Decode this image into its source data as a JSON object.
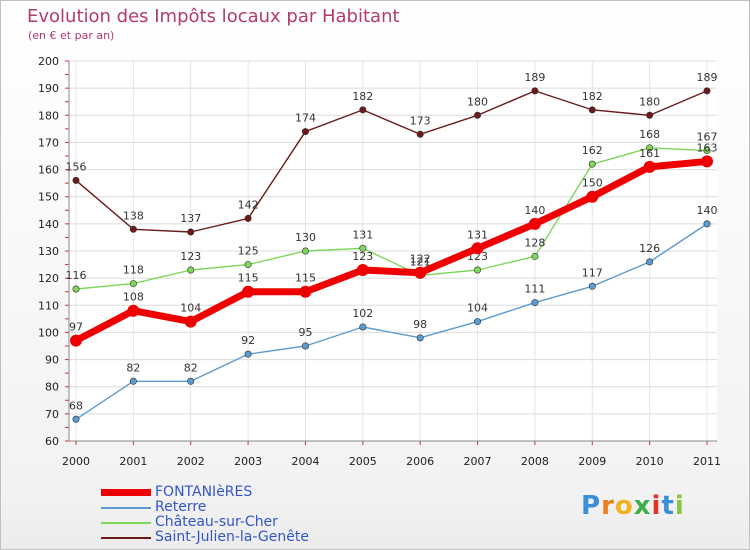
{
  "chart_data": {
    "type": "line",
    "title": "Evolution des Impôts locaux par Habitant",
    "subtitle": "(en € et par an)",
    "xlabel": "",
    "ylabel": "",
    "ylim": [
      60,
      200
    ],
    "yticks": [
      60,
      70,
      80,
      90,
      100,
      110,
      120,
      130,
      140,
      150,
      160,
      170,
      180,
      190,
      200
    ],
    "x": [
      "2000",
      "2001",
      "2002",
      "2003",
      "2004",
      "2005",
      "2006",
      "2007",
      "2008",
      "2009",
      "2010",
      "2011"
    ],
    "grid": true,
    "legend_position": "bottom-left",
    "series": [
      {
        "name": "Saint-Julien-la-Genête",
        "color": "#6b1a1a",
        "values": [
          156,
          138,
          137,
          142,
          174,
          182,
          173,
          180,
          189,
          182,
          180,
          189
        ]
      },
      {
        "name": "Château-sur-Cher",
        "color": "#7fd65a",
        "values": [
          116,
          118,
          123,
          125,
          130,
          131,
          121,
          123,
          128,
          162,
          168,
          167
        ]
      },
      {
        "name": "Reterre",
        "color": "#5b9bd0",
        "values": [
          68,
          82,
          82,
          92,
          95,
          102,
          98,
          104,
          111,
          117,
          126,
          140
        ]
      },
      {
        "name": "FONTANIèRES",
        "color": "#ee0000",
        "values": [
          97,
          108,
          104,
          115,
          115,
          123,
          122,
          131,
          140,
          150,
          161,
          163
        ]
      }
    ],
    "legend_order": [
      "FONTANIèRES",
      "Reterre",
      "Château-sur-Cher",
      "Saint-Julien-la-Genête"
    ]
  },
  "logo": [
    "P",
    "r",
    "o",
    "x",
    "i",
    "t",
    "i"
  ]
}
